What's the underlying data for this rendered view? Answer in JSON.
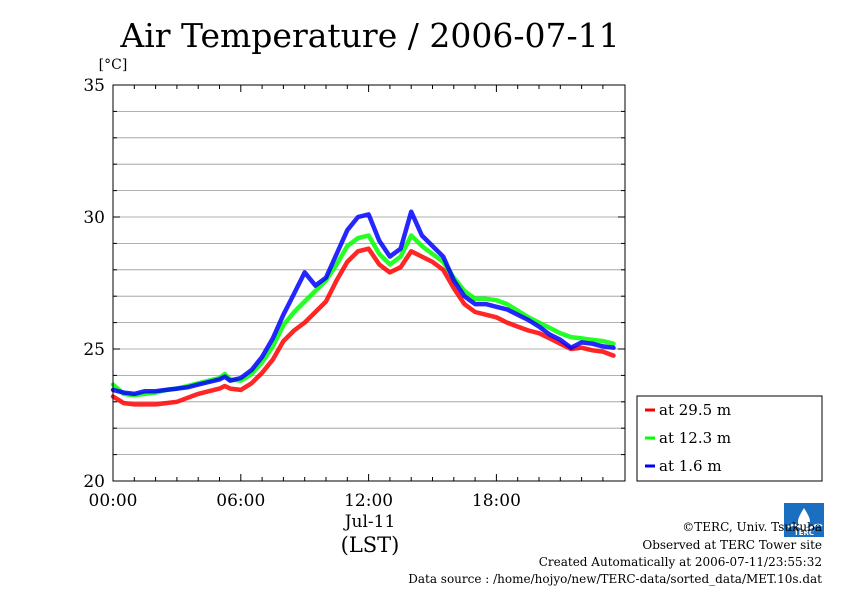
{
  "chart_data": {
    "type": "line",
    "title": "Air Temperature / 2006-07-11",
    "ylabel_unit": "[°C]",
    "xlabel_date": "Jul-11",
    "xlabel": "(LST)",
    "ylim": [
      20,
      35
    ],
    "xlim_hours": [
      0,
      23.5
    ],
    "grid": "horizontal",
    "y_ticks": [
      {
        "value": 20,
        "label": "20"
      },
      {
        "value": 25,
        "label": "25"
      },
      {
        "value": 30,
        "label": "30"
      },
      {
        "value": 35,
        "label": "35"
      }
    ],
    "x_ticks": [
      {
        "value": 0,
        "label": "00:00"
      },
      {
        "value": 6,
        "label": "06:00"
      },
      {
        "value": 12,
        "label": "12:00"
      },
      {
        "value": 18,
        "label": "18:00"
      }
    ],
    "legend_position": "right",
    "x": [
      0,
      0.5,
      1,
      1.5,
      2,
      2.5,
      3,
      3.5,
      4,
      4.5,
      5,
      5.25,
      5.5,
      6,
      6.5,
      7,
      7.5,
      8,
      8.5,
      9,
      9.5,
      10,
      10.5,
      11,
      11.5,
      12,
      12.5,
      13,
      13.5,
      14,
      14.5,
      15,
      15.5,
      16,
      16.5,
      17,
      17.5,
      18,
      18.5,
      19,
      19.5,
      20,
      20.5,
      21,
      21.5,
      22,
      22.5,
      23,
      23.5
    ],
    "series": [
      {
        "name": "at 29.5 m",
        "color": "#ff0000",
        "values": [
          23.2,
          22.95,
          22.9,
          22.9,
          22.9,
          22.95,
          23.0,
          23.15,
          23.3,
          23.4,
          23.5,
          23.6,
          23.5,
          23.45,
          23.7,
          24.1,
          24.6,
          25.3,
          25.7,
          26.0,
          26.4,
          26.8,
          27.6,
          28.3,
          28.7,
          28.8,
          28.2,
          27.9,
          28.1,
          28.7,
          28.5,
          28.3,
          28.0,
          27.3,
          26.7,
          26.4,
          26.3,
          26.2,
          26.0,
          25.85,
          25.7,
          25.6,
          25.4,
          25.2,
          25.0,
          25.05,
          24.95,
          24.9,
          24.75
        ]
      },
      {
        "name": "at 12.3 m",
        "color": "#00ff00",
        "values": [
          23.65,
          23.3,
          23.25,
          23.3,
          23.35,
          23.45,
          23.5,
          23.6,
          23.7,
          23.8,
          23.9,
          24.05,
          23.85,
          23.8,
          24.05,
          24.5,
          25.1,
          25.9,
          26.4,
          26.8,
          27.2,
          27.6,
          28.2,
          28.9,
          29.2,
          29.3,
          28.6,
          28.2,
          28.5,
          29.3,
          28.9,
          28.6,
          28.3,
          27.7,
          27.2,
          26.9,
          26.9,
          26.85,
          26.7,
          26.45,
          26.2,
          26.0,
          25.8,
          25.6,
          25.45,
          25.4,
          25.35,
          25.3,
          25.2
        ]
      },
      {
        "name": "at 1.6 m",
        "color": "#0000ff",
        "values": [
          23.45,
          23.35,
          23.3,
          23.4,
          23.4,
          23.45,
          23.5,
          23.55,
          23.65,
          23.75,
          23.85,
          23.95,
          23.8,
          23.9,
          24.2,
          24.7,
          25.4,
          26.3,
          27.1,
          27.9,
          27.4,
          27.7,
          28.6,
          29.5,
          30.0,
          30.1,
          29.1,
          28.5,
          28.8,
          30.2,
          29.3,
          28.9,
          28.5,
          27.6,
          27.0,
          26.7,
          26.7,
          26.6,
          26.5,
          26.3,
          26.1,
          25.85,
          25.55,
          25.35,
          25.05,
          25.25,
          25.2,
          25.1,
          25.05
        ]
      }
    ]
  },
  "credits": {
    "copyright": "©TERC, Univ. Tsukuba",
    "site": "Observed at TERC Tower site",
    "created": "Created Automatically at 2006-07-11/23:55:32",
    "source": "Data source : /home/hojyo/new/TERC-data/sorted_data/MET.10s.dat"
  },
  "logo": {
    "name": "terc-logo",
    "text": "TERC",
    "color": "#1a6fc0"
  }
}
